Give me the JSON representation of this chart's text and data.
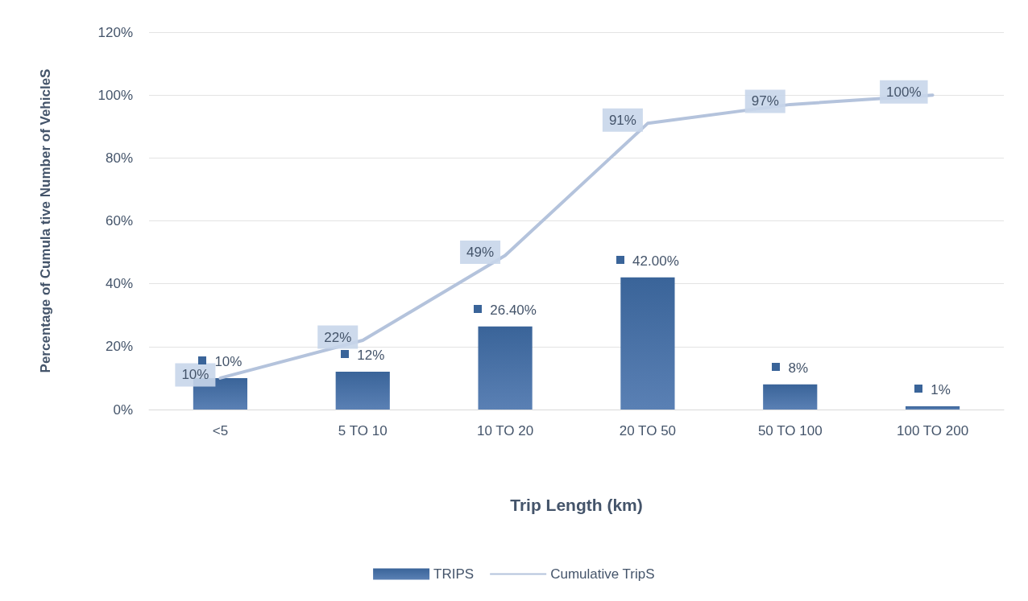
{
  "chart_data": {
    "type": "bar",
    "xlabel": "Trip Length (km)",
    "ylabel": "Percentage of Cumula tive Number of VehicleS",
    "categories": [
      "<5",
      "5 TO 10",
      "10 TO 20",
      "20 TO 50",
      "50 TO 100",
      "100 TO 200"
    ],
    "series": [
      {
        "name": "TRIPS",
        "color": "#3a6499",
        "values": [
          10,
          12,
          26.4,
          42,
          8,
          1
        ],
        "value_labels": [
          "10%",
          "12%",
          "26.40%",
          "42.00%",
          "8%",
          "1%"
        ]
      },
      {
        "name": "Cumulative TripS",
        "type": "line",
        "color": "#b4c3dc",
        "values": [
          10,
          22,
          49,
          91,
          97,
          100
        ],
        "value_labels": [
          "10%",
          "22%",
          "49%",
          "91%",
          "97%",
          "100%"
        ]
      }
    ],
    "ylim": [
      0,
      120
    ],
    "yticks": [
      {
        "value": 0,
        "label": "0%"
      },
      {
        "value": 20,
        "label": "20%"
      },
      {
        "value": 40,
        "label": "40%"
      },
      {
        "value": 60,
        "label": "60%"
      },
      {
        "value": 80,
        "label": "80%"
      },
      {
        "value": 100,
        "label": "100%"
      },
      {
        "value": 120,
        "label": "120%"
      }
    ],
    "grid": "y",
    "legend": "bottom",
    "marker": "none"
  }
}
